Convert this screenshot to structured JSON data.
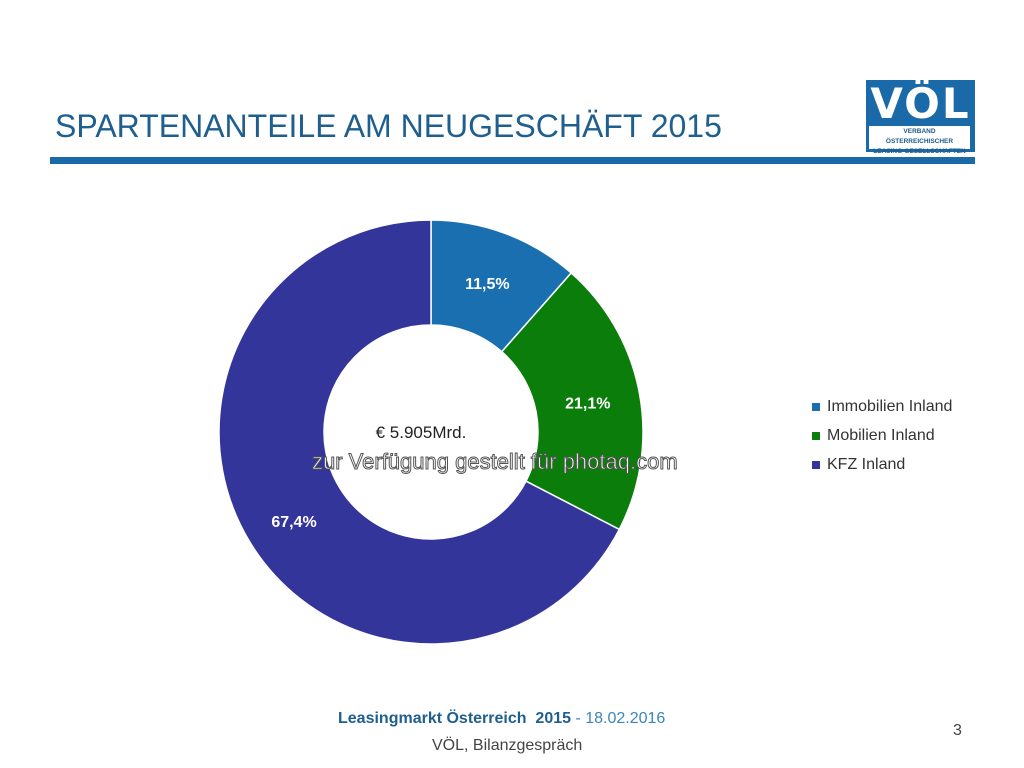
{
  "slide": {
    "title": "SPARTENANTEILE AM NEUGESCHÄFT 2015",
    "logo": {
      "letters": "VÖL",
      "subtitle_line1": "VERBAND ÖSTERREICHISCHER",
      "subtitle_line2": "LEASING-GESELLSCHAFTEN"
    },
    "footer": {
      "event": "Leasingmarkt Österreich  2015",
      "separator": " - ",
      "date": "18.02.2016",
      "subtitle": "VÖL, Bilanzgespräch"
    },
    "page_number": "3",
    "watermark": "zur Verfügung gestellt für photaq.com"
  },
  "chart_data": {
    "type": "pie",
    "subtype": "donut",
    "title": "SPARTENANTEILE AM NEUGESCHÄFT 2015",
    "center_label": "€ 5.905Mrd.",
    "categories": [
      "Immobilien Inland",
      "Mobilien Inland",
      "KFZ Inland"
    ],
    "values": [
      11.5,
      21.1,
      67.4
    ],
    "labels": [
      "11,5%",
      "21,1%",
      "67,4%"
    ],
    "colors": [
      "#1a6fb0",
      "#0a7d0a",
      "#33359a"
    ],
    "unit": "%",
    "legend_position": "right",
    "start_angle": "12 o'clock",
    "direction": "clockwise"
  }
}
